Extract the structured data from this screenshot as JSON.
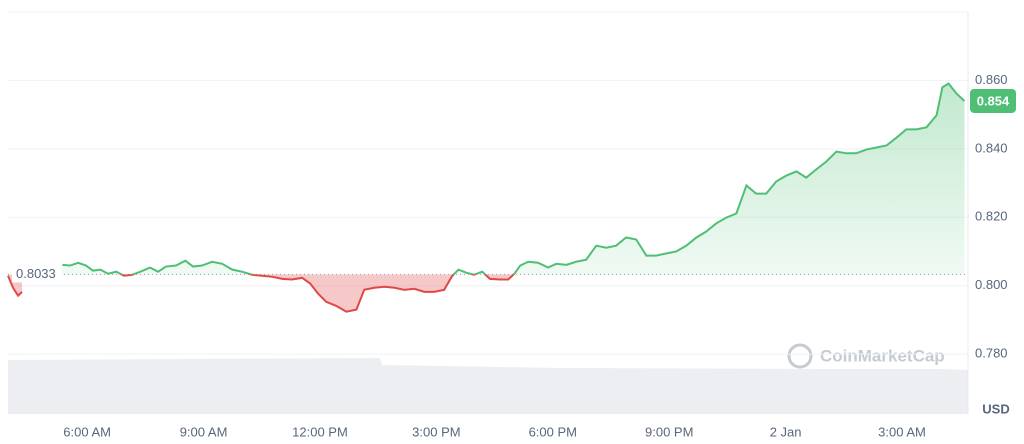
{
  "chart_data": {
    "type": "line",
    "x": [
      3.96,
      4.09,
      4.22,
      4.32,
      4.5,
      5.36,
      5.56,
      5.77,
      5.97,
      6.15,
      6.34,
      6.54,
      6.75,
      6.95,
      7.16,
      7.37,
      7.62,
      7.83,
      8.03,
      8.29,
      8.53,
      8.73,
      8.96,
      9.22,
      9.48,
      9.74,
      9.99,
      10.25,
      10.51,
      10.77,
      11.03,
      11.28,
      11.54,
      11.75,
      11.95,
      12.16,
      12.42,
      12.68,
      12.94,
      13.14,
      13.4,
      13.66,
      13.92,
      14.17,
      14.43,
      14.69,
      14.94,
      15.2,
      15.41,
      15.57,
      15.77,
      15.97,
      16.18,
      16.38,
      16.64,
      16.85,
      17.01,
      17.16,
      17.37,
      17.62,
      17.88,
      18.09,
      18.35,
      18.6,
      18.86,
      19.12,
      19.38,
      19.63,
      19.89,
      20.15,
      20.41,
      20.66,
      20.92,
      21.18,
      21.44,
      21.7,
      21.95,
      22.21,
      22.47,
      22.73,
      22.99,
      23.24,
      23.5,
      23.76,
      24.02,
      24.28,
      24.53,
      24.79,
      25.05,
      25.31,
      25.57,
      25.82,
      26.08,
      26.34,
      26.6,
      26.86,
      27.11,
      27.37,
      27.63,
      27.89,
      28.04,
      28.2,
      28.4,
      28.61
    ],
    "values": [
      0.8029,
      0.7994,
      0.7971,
      0.7982,
      null,
      0.8061,
      0.8059,
      0.8067,
      0.8059,
      0.8044,
      0.8047,
      0.8035,
      0.8041,
      0.8029,
      0.8032,
      0.8041,
      0.8053,
      0.8041,
      0.8056,
      0.8059,
      0.8073,
      0.8056,
      0.8059,
      0.807,
      0.8064,
      0.8047,
      0.8041,
      0.8032,
      0.8029,
      0.8026,
      0.802,
      0.8018,
      0.8023,
      0.8006,
      0.7977,
      0.7953,
      0.7941,
      0.7924,
      0.793,
      0.7988,
      0.7994,
      0.7997,
      0.7994,
      0.7988,
      0.7991,
      0.7982,
      0.7982,
      0.7988,
      0.8029,
      0.8047,
      0.8038,
      0.8032,
      0.8041,
      0.802,
      0.8018,
      0.8018,
      0.8035,
      0.8059,
      0.807,
      0.8067,
      0.8053,
      0.8064,
      0.8061,
      0.807,
      0.8076,
      0.8117,
      0.8111,
      0.8117,
      0.8141,
      0.8135,
      0.8088,
      0.8088,
      0.8094,
      0.81,
      0.8117,
      0.8141,
      0.8158,
      0.8182,
      0.8199,
      0.8211,
      0.8293,
      0.8269,
      0.8269,
      0.8305,
      0.8322,
      0.8334,
      0.8316,
      0.834,
      0.8363,
      0.8392,
      0.8387,
      0.8387,
      0.8398,
      0.8404,
      0.841,
      0.8433,
      0.8457,
      0.8457,
      0.8463,
      0.8498,
      0.858,
      0.8591,
      0.8562,
      0.854
    ],
    "baseline": 0.8033,
    "price_label": "0.854",
    "up_color": "#4fbf75",
    "down_color": "#e04848",
    "xlim": [
      3.96,
      28.7
    ],
    "xticks": [
      {
        "value": 6,
        "label": "6:00 AM"
      },
      {
        "value": 9,
        "label": "9:00 AM"
      },
      {
        "value": 12,
        "label": "12:00 PM"
      },
      {
        "value": 15,
        "label": "3:00 PM"
      },
      {
        "value": 18,
        "label": "6:00 PM"
      },
      {
        "value": 21,
        "label": "9:00 PM"
      },
      {
        "value": 24,
        "label": "2 Jan"
      },
      {
        "value": 27,
        "label": "3:00 AM"
      }
    ],
    "ylim": [
      0.7625,
      0.88
    ],
    "yticks": [
      {
        "value": 0.78,
        "label": "0.780"
      },
      {
        "value": 0.8,
        "label": "0.800"
      },
      {
        "value": 0.82,
        "label": "0.820"
      },
      {
        "value": 0.84,
        "label": "0.840"
      },
      {
        "value": 0.86,
        "label": "0.860"
      }
    ],
    "grid": true,
    "currency": "USD",
    "watermark": "CoinMarketCap"
  }
}
